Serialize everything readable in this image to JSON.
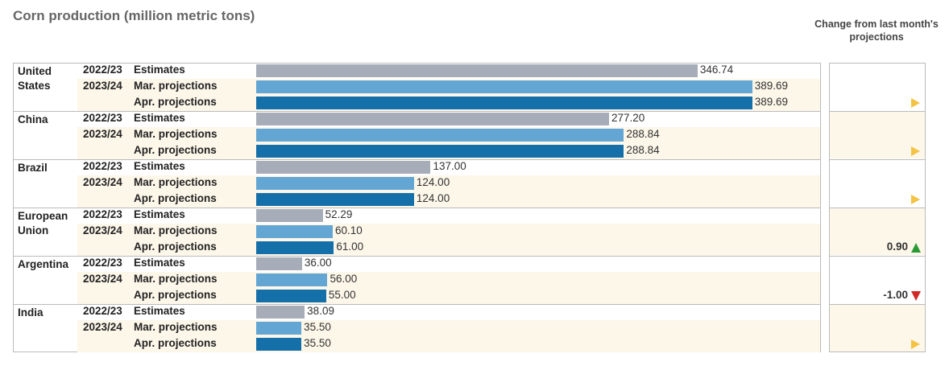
{
  "chart_data": {
    "type": "bar-table",
    "title": "Corn production (million metric tons)",
    "change_header": "Change from last month's projections",
    "series": [
      {
        "name": "Estimates",
        "year": "2022/23",
        "color": "#a6adb8"
      },
      {
        "name": "Mar. projections",
        "year": "2023/24",
        "color": "#63a5d3"
      },
      {
        "name": "Apr. projections",
        "color": "#1570aa"
      }
    ],
    "xlim": [
      0,
      400
    ],
    "groups": [
      {
        "name": "United States",
        "values": [
          346.74,
          389.69,
          389.69
        ],
        "value_labels": [
          "346.74",
          "389.69",
          "389.69"
        ],
        "change": 0,
        "change_label": null
      },
      {
        "name": "China",
        "values": [
          277.2,
          288.84,
          288.84
        ],
        "value_labels": [
          "277.20",
          "288.84",
          "288.84"
        ],
        "change": 0,
        "change_label": null
      },
      {
        "name": "Brazil",
        "values": [
          137,
          124,
          124
        ],
        "value_labels": [
          "137.00",
          "124.00",
          "124.00"
        ],
        "change": 0,
        "change_label": null
      },
      {
        "name": "European Union",
        "values": [
          52.29,
          60.1,
          61
        ],
        "value_labels": [
          "52.29",
          "60.10",
          "61.00"
        ],
        "change": 0.9,
        "change_label": "0.90"
      },
      {
        "name": "Argentina",
        "values": [
          36,
          56,
          55
        ],
        "value_labels": [
          "36.00",
          "56.00",
          "55.00"
        ],
        "change": -1,
        "change_label": "-1.00"
      },
      {
        "name": "India",
        "values": [
          38.09,
          35.5,
          35.5
        ],
        "value_labels": [
          "38.09",
          "35.50",
          "35.50"
        ],
        "change": 0,
        "change_label": null
      }
    ]
  }
}
